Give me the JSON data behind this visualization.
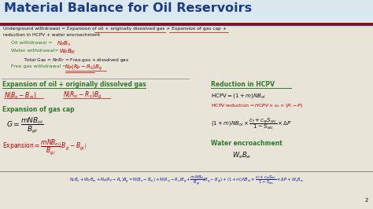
{
  "title": "Material Balance for Oil Reservoirs",
  "title_color": "#1a3a8a",
  "title_fontsize": 11.5,
  "bg_color": "#e8e4d8",
  "header_line_color1": "#8b0000",
  "header_line_color2": "#3a3a8a",
  "line1": "Underground withdrawal = Expansion of oil + originally dissolved gas + Expansion of gas cap +",
  "line2": "reduction in HCPV + water encroachment",
  "green_color": "#2d7a2d",
  "red_color": "#c00000",
  "dark_blue": "#1a1a9a",
  "black": "#111111",
  "purple": "#6600aa"
}
